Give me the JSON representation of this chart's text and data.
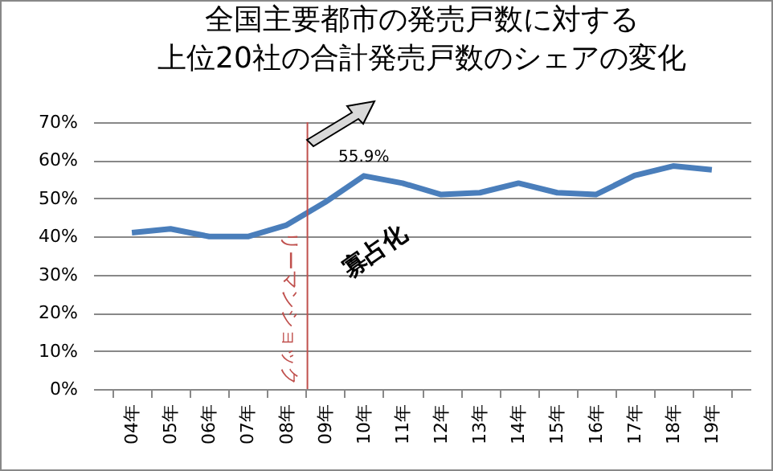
{
  "chart_data": {
    "type": "line",
    "title": [
      "全国主要都市の発売戸数に対する",
      "上位20社の合計発売戸数のシェアの変化"
    ],
    "categories": [
      "04年",
      "05年",
      "06年",
      "07年",
      "08年",
      "09年",
      "10年",
      "11年",
      "12年",
      "13年",
      "14年",
      "15年",
      "16年",
      "17年",
      "18年",
      "19年"
    ],
    "series": [
      {
        "color": "#4a7ebb",
        "values": [
          41,
          42,
          40,
          40,
          43,
          49,
          55.9,
          54,
          51,
          51.5,
          54,
          51.5,
          51,
          56,
          58.5,
          57.5
        ]
      }
    ],
    "ylim": [
      0,
      70
    ],
    "yticks": [
      {
        "value": 0,
        "label": "0%"
      },
      {
        "value": 10,
        "label": "10%"
      },
      {
        "value": 20,
        "label": "20%"
      },
      {
        "value": 30,
        "label": "30%"
      },
      {
        "value": 40,
        "label": "40%"
      },
      {
        "value": 50,
        "label": "50%"
      },
      {
        "value": 60,
        "label": "60%"
      },
      {
        "value": 70,
        "label": "70%"
      }
    ],
    "grid": "y",
    "ref_lines": [
      {
        "axis": "x",
        "value": "08年",
        "label": "リーマンショック",
        "color": "#c0504d"
      }
    ],
    "annotations": [
      {
        "text": "55.9%",
        "x": "10年",
        "y": 55.9
      },
      "寡占化"
    ]
  }
}
